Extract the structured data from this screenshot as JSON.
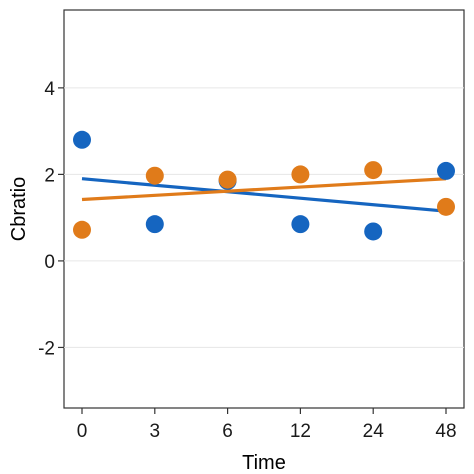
{
  "chart_data": {
    "type": "scatter",
    "title": "",
    "xlabel": "Time",
    "ylabel": "Cbratio",
    "categories": [
      "0",
      "3",
      "6",
      "12",
      "24",
      "48"
    ],
    "ylim": [
      -3.4,
      5.8
    ],
    "yticks": [
      -2,
      0,
      2,
      4
    ],
    "grid": "horizontal",
    "legend": "none",
    "series": [
      {
        "color": "#1565c0",
        "values": [
          2.8,
          0.85,
          1.85,
          0.85,
          0.68,
          2.08
        ],
        "trend": [
          1.9,
          1.15
        ]
      },
      {
        "color": "#e07b1a",
        "values": [
          0.72,
          1.97,
          1.88,
          2.0,
          2.1,
          1.25
        ],
        "trend": [
          1.42,
          1.9
        ]
      }
    ]
  }
}
